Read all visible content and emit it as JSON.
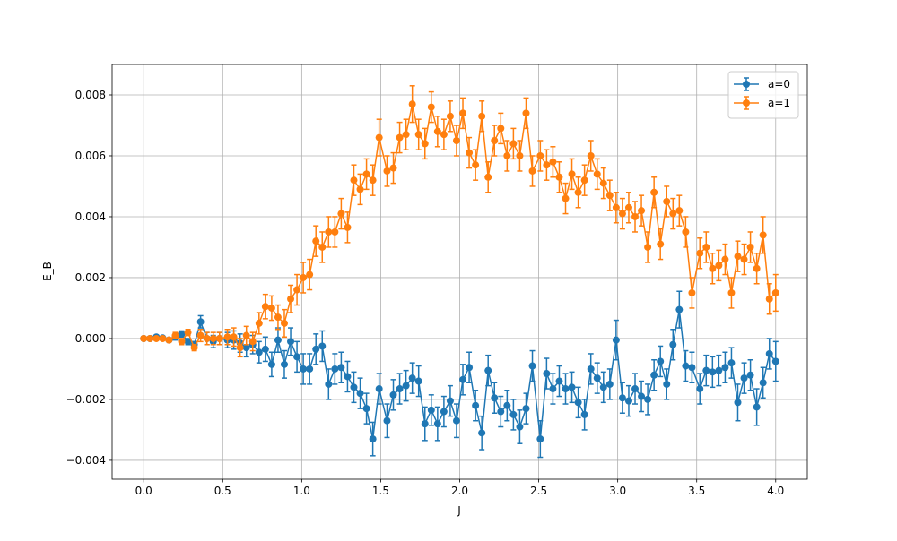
{
  "chart_data": {
    "type": "errorbar",
    "xlabel": "J",
    "ylabel": "E_B",
    "x": [
      0,
      0.04,
      0.08,
      0.12,
      0.16,
      0.2,
      0.24,
      0.28,
      0.32,
      0.36,
      0.4,
      0.44,
      0.48,
      0.53,
      0.57,
      0.61,
      0.65,
      0.69,
      0.73,
      0.77,
      0.81,
      0.85,
      0.89,
      0.93,
      0.97,
      1.01,
      1.05,
      1.09,
      1.13,
      1.17,
      1.21,
      1.25,
      1.29,
      1.33,
      1.37,
      1.41,
      1.45,
      1.49,
      1.54,
      1.58,
      1.62,
      1.66,
      1.7,
      1.74,
      1.78,
      1.82,
      1.86,
      1.9,
      1.94,
      1.98,
      2.02,
      2.06,
      2.1,
      2.14,
      2.18,
      2.22,
      2.26,
      2.3,
      2.34,
      2.38,
      2.42,
      2.46,
      2.51,
      2.55,
      2.59,
      2.63,
      2.67,
      2.71,
      2.75,
      2.79,
      2.83,
      2.87,
      2.91,
      2.95,
      2.99,
      3.03,
      3.07,
      3.11,
      3.15,
      3.19,
      3.23,
      3.27,
      3.31,
      3.35,
      3.39,
      3.43,
      3.47,
      3.52,
      3.56,
      3.6,
      3.64,
      3.68,
      3.72,
      3.76,
      3.8,
      3.84,
      3.88,
      3.92,
      3.96,
      4.0
    ],
    "series": [
      {
        "name": "a=0",
        "color": "#1f77b4",
        "values": [
          0,
          0,
          5e-05,
          2e-05,
          -5e-05,
          5e-05,
          0.00015,
          -0.0001,
          -0.0002,
          0.00055,
          0,
          -0.0001,
          0,
          -5e-05,
          -5e-05,
          -0.00015,
          -0.0003,
          -0.0002,
          -0.00045,
          -0.00035,
          -0.00085,
          -5e-05,
          -0.00085,
          -0.0001,
          -0.0006,
          -0.001,
          -0.001,
          -0.00035,
          -0.00025,
          -0.0015,
          -0.001,
          -0.00095,
          -0.00125,
          -0.0016,
          -0.0018,
          -0.0023,
          -0.0033,
          -0.00165,
          -0.0027,
          -0.00185,
          -0.00165,
          -0.00155,
          -0.0013,
          -0.0014,
          -0.0028,
          -0.00235,
          -0.0028,
          -0.0024,
          -0.00205,
          -0.0027,
          -0.00135,
          -0.00095,
          -0.0022,
          -0.0031,
          -0.00105,
          -0.00195,
          -0.0024,
          -0.0022,
          -0.0025,
          -0.0029,
          -0.0023,
          -0.0009,
          -0.0033,
          -0.00115,
          -0.00165,
          -0.0014,
          -0.00165,
          -0.0016,
          -0.0021,
          -0.0025,
          -0.001,
          -0.0013,
          -0.0016,
          -0.0015,
          -5e-05,
          -0.00195,
          -0.00205,
          -0.00165,
          -0.0019,
          -0.002,
          -0.0012,
          -0.00075,
          -0.0015,
          -0.0002,
          0.00095,
          -0.0009,
          -0.00095,
          -0.00165,
          -0.00105,
          -0.0011,
          -0.00105,
          -0.00095,
          -0.0008,
          -0.0021,
          -0.0013,
          -0.0012,
          -0.00225,
          -0.00145,
          -0.0005,
          -0.00075
        ],
        "errors": [
          5e-05,
          5e-05,
          5e-05,
          5e-05,
          5e-05,
          0.0001,
          0.0001,
          0.0001,
          0.0001,
          0.0002,
          0.0002,
          0.0002,
          0.0002,
          0.00025,
          0.0003,
          0.0003,
          0.0003,
          0.0003,
          0.00035,
          0.0004,
          0.0004,
          0.0004,
          0.00045,
          0.00045,
          0.0005,
          0.0005,
          0.0005,
          0.0005,
          0.0005,
          0.0005,
          0.0005,
          0.0005,
          0.0005,
          0.0005,
          0.0005,
          0.0005,
          0.00055,
          0.0005,
          0.00055,
          0.0005,
          0.0005,
          0.0005,
          0.0005,
          0.0005,
          0.00055,
          0.0005,
          0.00055,
          0.0005,
          0.0005,
          0.00055,
          0.0005,
          0.0005,
          0.0005,
          0.00055,
          0.0005,
          0.0005,
          0.0005,
          0.0005,
          0.0005,
          0.00055,
          0.0005,
          0.0005,
          0.0006,
          0.0005,
          0.0005,
          0.0005,
          0.0005,
          0.0005,
          0.0005,
          0.0005,
          0.0005,
          0.0005,
          0.0005,
          0.0005,
          0.00065,
          0.0005,
          0.0005,
          0.0005,
          0.0005,
          0.0005,
          0.0005,
          0.0005,
          0.0005,
          0.0005,
          0.0006,
          0.0005,
          0.0005,
          0.0005,
          0.0005,
          0.0005,
          0.0005,
          0.0005,
          0.0005,
          0.0006,
          0.0005,
          0.0005,
          0.0006,
          0.0005,
          0.0005,
          0.00065
        ]
      },
      {
        "name": "a=1",
        "color": "#ff7f0e",
        "values": [
          0,
          0,
          0,
          0,
          -5e-05,
          0.0001,
          -0.0001,
          0.0002,
          -0.0003,
          0.0001,
          0,
          0,
          0,
          5e-05,
          5e-05,
          -0.0003,
          0.0001,
          -0.0001,
          0.0005,
          0.00105,
          0.001,
          0.0007,
          0.0005,
          0.0013,
          0.0016,
          0.002,
          0.0021,
          0.0032,
          0.003,
          0.0035,
          0.0035,
          0.0041,
          0.00365,
          0.0052,
          0.0049,
          0.0054,
          0.0052,
          0.0066,
          0.0055,
          0.0056,
          0.0066,
          0.0067,
          0.0077,
          0.0067,
          0.0064,
          0.0076,
          0.0068,
          0.0067,
          0.0073,
          0.0065,
          0.0074,
          0.0061,
          0.0057,
          0.0073,
          0.0053,
          0.0065,
          0.0069,
          0.006,
          0.0064,
          0.006,
          0.0074,
          0.0055,
          0.006,
          0.0057,
          0.0058,
          0.0053,
          0.0046,
          0.0054,
          0.0048,
          0.0052,
          0.006,
          0.0054,
          0.0051,
          0.0047,
          0.0043,
          0.0041,
          0.0043,
          0.004,
          0.0042,
          0.003,
          0.0048,
          0.0031,
          0.0045,
          0.0041,
          0.0042,
          0.0035,
          0.0015,
          0.0028,
          0.003,
          0.0023,
          0.0024,
          0.0026,
          0.0015,
          0.0027,
          0.0026,
          0.003,
          0.0023,
          0.0034,
          0.0013,
          0.0015
        ],
        "errors": [
          5e-05,
          5e-05,
          5e-05,
          5e-05,
          5e-05,
          0.0001,
          0.0001,
          0.0001,
          0.0001,
          0.0002,
          0.0002,
          0.0002,
          0.0002,
          0.00025,
          0.0003,
          0.0003,
          0.0003,
          0.0003,
          0.00035,
          0.0004,
          0.0004,
          0.0004,
          0.00045,
          0.00045,
          0.0005,
          0.0005,
          0.0005,
          0.0005,
          0.0005,
          0.0005,
          0.0005,
          0.0005,
          0.0005,
          0.0005,
          0.0005,
          0.0005,
          0.0005,
          0.0006,
          0.0005,
          0.0005,
          0.0005,
          0.0005,
          0.0006,
          0.0005,
          0.0005,
          0.0005,
          0.0005,
          0.0005,
          0.0005,
          0.0005,
          0.0005,
          0.0005,
          0.0005,
          0.0005,
          0.0005,
          0.0005,
          0.0005,
          0.0005,
          0.0005,
          0.0005,
          0.0005,
          0.0005,
          0.0005,
          0.0005,
          0.0005,
          0.0005,
          0.0005,
          0.0005,
          0.0005,
          0.0005,
          0.0005,
          0.0005,
          0.0005,
          0.0005,
          0.0005,
          0.0005,
          0.0005,
          0.0005,
          0.0005,
          0.0005,
          0.0005,
          0.0005,
          0.0005,
          0.0005,
          0.0005,
          0.0005,
          0.0005,
          0.0005,
          0.0005,
          0.0005,
          0.0005,
          0.0005,
          0.0005,
          0.0005,
          0.0005,
          0.0005,
          0.0005,
          0.0006,
          0.0005,
          0.0006
        ]
      }
    ],
    "xlim": [
      -0.2,
      4.2
    ],
    "ylim": [
      -0.00462,
      0.009
    ],
    "xticks": [
      {
        "value": 0,
        "label": "0.0"
      },
      0.5,
      {
        "value": 1,
        "label": "1.0"
      },
      1.5,
      {
        "value": 2,
        "label": "2.0"
      },
      2.5,
      {
        "value": 3,
        "label": "3.0"
      },
      3.5,
      {
        "value": 4,
        "label": "4.0"
      }
    ],
    "yticks": [
      {
        "value": -0.004,
        "label": "−0.004"
      },
      {
        "value": -0.002,
        "label": "−0.002"
      },
      {
        "value": 0,
        "label": "0.000"
      },
      0.002,
      0.004,
      0.006,
      0.008
    ],
    "grid": true,
    "legend": "upper right"
  }
}
